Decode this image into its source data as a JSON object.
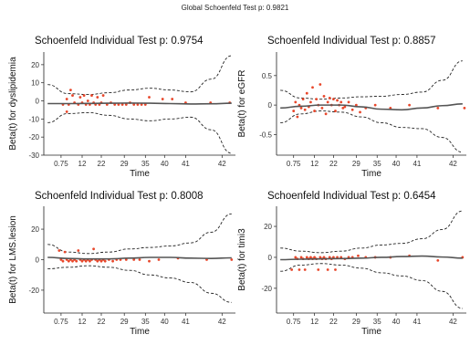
{
  "figure": {
    "title": "Global Schoenfeld Test p: 0.9821"
  },
  "style": {
    "point_color": "#e8472b",
    "smooth_color": "#555555",
    "band_color": "#222222",
    "axis_color": "#222222",
    "text_color": "#333333"
  },
  "chart_data": [
    {
      "type": "scatter",
      "title": "Schoenfeld Individual Test p: 0.9754",
      "xlabel": "Time",
      "ylabel": "Beta(t) for dyslipidemia",
      "xticks": [
        "0.75",
        "12",
        "22",
        "29",
        "35",
        "40",
        "41",
        "42"
      ],
      "yticks": [
        -30,
        -20,
        -10,
        0,
        10,
        20
      ],
      "ylim": [
        -30,
        27
      ],
      "grid": false,
      "smooth_line": [
        -1.5,
        -1.5,
        -1.4,
        -1.3,
        -1.2,
        -1.3,
        -1.5,
        -1.7,
        -1.6,
        -1.3
      ],
      "band_upper": [
        9,
        4,
        3.5,
        4.5,
        6,
        7,
        6,
        5,
        12,
        25
      ],
      "band_lower": [
        -12,
        -7,
        -6.5,
        -8,
        -10,
        -11,
        -10,
        -9,
        -16,
        -29
      ],
      "points": [
        [
          0.1,
          -2
        ],
        [
          0.12,
          1
        ],
        [
          0.13,
          -2
        ],
        [
          0.15,
          3
        ],
        [
          0.16,
          -1
        ],
        [
          0.18,
          -2
        ],
        [
          0.19,
          2
        ],
        [
          0.2,
          -1
        ],
        [
          0.21,
          3
        ],
        [
          0.22,
          -2
        ],
        [
          0.23,
          0
        ],
        [
          0.24,
          -2
        ],
        [
          0.25,
          3
        ],
        [
          0.26,
          -1
        ],
        [
          0.27,
          -2
        ],
        [
          0.28,
          2
        ],
        [
          0.29,
          -2
        ],
        [
          0.3,
          -1
        ],
        [
          0.31,
          3
        ],
        [
          0.33,
          -2
        ],
        [
          0.35,
          -1
        ],
        [
          0.37,
          -2
        ],
        [
          0.39,
          -2
        ],
        [
          0.41,
          -2
        ],
        [
          0.43,
          -2
        ],
        [
          0.45,
          -1
        ],
        [
          0.47,
          -2
        ],
        [
          0.49,
          -2
        ],
        [
          0.51,
          -2
        ],
        [
          0.53,
          -2
        ],
        [
          0.12,
          -6
        ],
        [
          0.14,
          6
        ],
        [
          0.55,
          2
        ],
        [
          0.62,
          1
        ],
        [
          0.67,
          1
        ],
        [
          0.74,
          -1
        ],
        [
          0.87,
          -1
        ],
        [
          0.97,
          -1
        ]
      ]
    },
    {
      "type": "scatter",
      "title": "Schoenfeld Individual Test p: 0.8857",
      "xlabel": "Time",
      "ylabel": "Beta(t) for eGFR",
      "xticks": [
        "0.75",
        "12",
        "22",
        "29",
        "35",
        "40",
        "41",
        "42"
      ],
      "yticks": [
        -0.5,
        0,
        0.5
      ],
      "ylim": [
        -0.85,
        0.9
      ],
      "grid": false,
      "smooth_line": [
        -0.05,
        -0.02,
        0.0,
        0.0,
        -0.03,
        -0.07,
        -0.08,
        -0.05,
        -0.01,
        0.02
      ],
      "band_upper": [
        0.25,
        0.12,
        0.1,
        0.12,
        0.14,
        0.15,
        0.18,
        0.22,
        0.42,
        0.75
      ],
      "band_lower": [
        -0.3,
        -0.15,
        -0.1,
        -0.12,
        -0.2,
        -0.3,
        -0.38,
        -0.4,
        -0.55,
        -0.8
      ],
      "points": [
        [
          0.09,
          -0.1
        ],
        [
          0.1,
          0.05
        ],
        [
          0.11,
          -0.2
        ],
        [
          0.12,
          0.0
        ],
        [
          0.13,
          -0.05
        ],
        [
          0.14,
          0.1
        ],
        [
          0.15,
          -0.08
        ],
        [
          0.16,
          0.2
        ],
        [
          0.17,
          -0.03
        ],
        [
          0.18,
          0.05
        ],
        [
          0.19,
          0.3
        ],
        [
          0.2,
          -0.1
        ],
        [
          0.21,
          0.1
        ],
        [
          0.22,
          0.0
        ],
        [
          0.23,
          0.35
        ],
        [
          0.24,
          -0.05
        ],
        [
          0.25,
          0.15
        ],
        [
          0.26,
          -0.15
        ],
        [
          0.27,
          0.05
        ],
        [
          0.28,
          0.12
        ],
        [
          0.29,
          0.0
        ],
        [
          0.3,
          0.1
        ],
        [
          0.31,
          -0.1
        ],
        [
          0.32,
          0.08
        ],
        [
          0.33,
          0.0
        ],
        [
          0.34,
          0.05
        ],
        [
          0.35,
          -0.05
        ],
        [
          0.36,
          -0.03
        ],
        [
          0.38,
          0.05
        ],
        [
          0.4,
          -0.08
        ],
        [
          0.42,
          0.0
        ],
        [
          0.44,
          -0.12
        ],
        [
          0.47,
          -0.05
        ],
        [
          0.52,
          0.0
        ],
        [
          0.6,
          -0.05
        ],
        [
          0.7,
          0.0
        ],
        [
          0.85,
          -0.05
        ],
        [
          0.99,
          -0.05
        ]
      ]
    },
    {
      "type": "scatter",
      "title": "Schoenfeld Individual Test p: 0.8008",
      "xlabel": "Time",
      "ylabel": "Beta(t) for LMS.lesion",
      "xticks": [
        "0.75",
        "12",
        "22",
        "29",
        "35",
        "40",
        "41",
        "42"
      ],
      "yticks": [
        -20,
        0,
        20
      ],
      "ylim": [
        -35,
        35
      ],
      "grid": false,
      "smooth_line": [
        1.5,
        0.8,
        0.5,
        0.5,
        1.0,
        1.5,
        1.5,
        1.0,
        0.8,
        1.2
      ],
      "band_upper": [
        10,
        5,
        4,
        5,
        7,
        8,
        9,
        11,
        18,
        30
      ],
      "band_lower": [
        -6,
        -5,
        -4,
        -5,
        -7,
        -10,
        -12,
        -15,
        -22,
        -28
      ],
      "points": [
        [
          0.08,
          6
        ],
        [
          0.09,
          0
        ],
        [
          0.1,
          -1
        ],
        [
          0.11,
          5
        ],
        [
          0.12,
          0
        ],
        [
          0.13,
          -1
        ],
        [
          0.14,
          0
        ],
        [
          0.15,
          -1
        ],
        [
          0.16,
          0
        ],
        [
          0.17,
          -1
        ],
        [
          0.18,
          6
        ],
        [
          0.19,
          0
        ],
        [
          0.2,
          -1
        ],
        [
          0.21,
          0
        ],
        [
          0.22,
          -1
        ],
        [
          0.23,
          0
        ],
        [
          0.24,
          -1
        ],
        [
          0.25,
          0
        ],
        [
          0.26,
          7
        ],
        [
          0.27,
          0
        ],
        [
          0.28,
          -1
        ],
        [
          0.29,
          0
        ],
        [
          0.3,
          -1
        ],
        [
          0.31,
          0
        ],
        [
          0.32,
          -1
        ],
        [
          0.34,
          0
        ],
        [
          0.36,
          -1
        ],
        [
          0.38,
          0
        ],
        [
          0.4,
          0
        ],
        [
          0.43,
          0
        ],
        [
          0.47,
          0
        ],
        [
          0.5,
          0
        ],
        [
          0.55,
          -1
        ],
        [
          0.6,
          0
        ],
        [
          0.7,
          1
        ],
        [
          0.85,
          0
        ],
        [
          0.98,
          0
        ]
      ]
    },
    {
      "type": "scatter",
      "title": "Schoenfeld Individual Test p: 0.6454",
      "xlabel": "Time",
      "ylabel": "Beta(t) for timi3",
      "xticks": [
        "0.75",
        "12",
        "22",
        "29",
        "35",
        "40",
        "41",
        "42"
      ],
      "yticks": [
        -20,
        0,
        20
      ],
      "ylim": [
        -36,
        33
      ],
      "grid": false,
      "smooth_line": [
        -1.5,
        -1.2,
        -1.0,
        -0.8,
        -0.5,
        0.0,
        0.5,
        0.8,
        0.2,
        -0.5
      ],
      "band_upper": [
        6,
        4,
        3,
        4,
        6,
        8,
        9,
        12,
        18,
        30
      ],
      "band_lower": [
        -9,
        -5,
        -4,
        -5,
        -7,
        -10,
        -12,
        -15,
        -22,
        -33
      ],
      "points": [
        [
          0.08,
          -8
        ],
        [
          0.1,
          0
        ],
        [
          0.11,
          -1
        ],
        [
          0.12,
          -8
        ],
        [
          0.13,
          0
        ],
        [
          0.14,
          -1
        ],
        [
          0.15,
          -8
        ],
        [
          0.16,
          0
        ],
        [
          0.17,
          -1
        ],
        [
          0.18,
          0
        ],
        [
          0.19,
          -1
        ],
        [
          0.2,
          0
        ],
        [
          0.21,
          -1
        ],
        [
          0.22,
          -8
        ],
        [
          0.23,
          0
        ],
        [
          0.24,
          -1
        ],
        [
          0.25,
          0
        ],
        [
          0.26,
          -1
        ],
        [
          0.27,
          -8
        ],
        [
          0.28,
          0
        ],
        [
          0.29,
          -1
        ],
        [
          0.3,
          0
        ],
        [
          0.31,
          -8
        ],
        [
          0.32,
          0
        ],
        [
          0.34,
          0
        ],
        [
          0.36,
          -1
        ],
        [
          0.38,
          0
        ],
        [
          0.4,
          0
        ],
        [
          0.43,
          1
        ],
        [
          0.47,
          0
        ],
        [
          0.52,
          0
        ],
        [
          0.6,
          0
        ],
        [
          0.7,
          1
        ],
        [
          0.85,
          -2
        ],
        [
          0.98,
          0
        ]
      ]
    }
  ]
}
